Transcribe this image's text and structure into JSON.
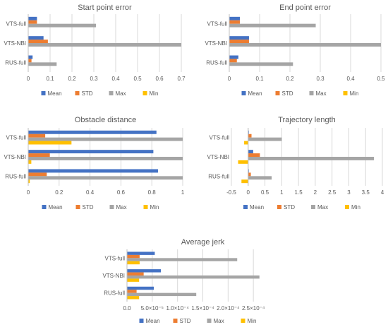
{
  "figure": {
    "series_colors": [
      "#4472C4",
      "#ED7D31",
      "#A5A5A5",
      "#FFC000"
    ]
  },
  "chart_data": [
    {
      "type": "bar",
      "orientation": "horizontal",
      "title": "Start point error",
      "categories": [
        "VTS-full",
        "VTS-NBI",
        "RUS-full"
      ],
      "series": [
        {
          "name": "Mean",
          "values": [
            0.04,
            0.07,
            0.02
          ]
        },
        {
          "name": "STD",
          "values": [
            0.04,
            0.09,
            0.015
          ]
        },
        {
          "name": "Max",
          "values": [
            0.31,
            0.7,
            0.13
          ]
        },
        {
          "name": "Min",
          "values": [
            0.0,
            0.0,
            0.0
          ]
        }
      ],
      "xlim": [
        0,
        0.7
      ],
      "xticks": [
        0,
        0.1,
        0.2,
        0.3,
        0.4,
        0.5,
        0.6,
        0.7
      ],
      "xtick_labels": [
        "0",
        "0.1",
        "0.2",
        "0.3",
        "0.4",
        "0.5",
        "0.6",
        "0.7"
      ],
      "grid": true,
      "legend": "bottom"
    },
    {
      "type": "bar",
      "orientation": "horizontal",
      "title": "End point error",
      "categories": [
        "VTS-full",
        "VTS-NBI",
        "RUS-full"
      ],
      "series": [
        {
          "name": "Mean",
          "values": [
            0.035,
            0.065,
            0.03
          ]
        },
        {
          "name": "STD",
          "values": [
            0.035,
            0.065,
            0.025
          ]
        },
        {
          "name": "Max",
          "values": [
            0.285,
            0.5,
            0.21
          ]
        },
        {
          "name": "Min",
          "values": [
            0.0,
            0.0,
            0.0
          ]
        }
      ],
      "xlim": [
        0,
        0.5
      ],
      "xticks": [
        0,
        0.1,
        0.2,
        0.3,
        0.4,
        0.5
      ],
      "xtick_labels": [
        "0",
        "0.1",
        "0.2",
        "0.3",
        "0.4",
        "0.5"
      ],
      "grid": true,
      "legend": "bottom"
    },
    {
      "type": "bar",
      "orientation": "horizontal",
      "title": "Obstacle distance",
      "categories": [
        "VTS-full",
        "VTS-NBI",
        "RUS-full"
      ],
      "series": [
        {
          "name": "Mean",
          "values": [
            0.83,
            0.81,
            0.84
          ]
        },
        {
          "name": "STD",
          "values": [
            0.11,
            0.14,
            0.12
          ]
        },
        {
          "name": "Max",
          "values": [
            1.0,
            1.0,
            1.0
          ]
        },
        {
          "name": "Min",
          "values": [
            0.28,
            0.02,
            0.01
          ]
        }
      ],
      "xlim": [
        0,
        1
      ],
      "xticks": [
        0,
        0.2,
        0.4,
        0.6,
        0.8,
        1
      ],
      "xtick_labels": [
        "0",
        "0.2",
        "0.4",
        "0.6",
        "0.8",
        "1"
      ],
      "grid": true,
      "legend": "bottom"
    },
    {
      "type": "bar",
      "orientation": "horizontal",
      "title": "Trajectory length",
      "categories": [
        "VTS-full",
        "VTS-NBI",
        "RUS-full"
      ],
      "series": [
        {
          "name": "Mean",
          "values": [
            0.02,
            0.15,
            0.02
          ]
        },
        {
          "name": "STD",
          "values": [
            0.1,
            0.35,
            0.08
          ]
        },
        {
          "name": "Max",
          "values": [
            1.0,
            3.75,
            0.7
          ]
        },
        {
          "name": "Min",
          "values": [
            -0.12,
            -0.3,
            -0.2
          ]
        }
      ],
      "xlim": [
        -0.5,
        4
      ],
      "xticks": [
        -0.5,
        0,
        0.5,
        1,
        1.5,
        2,
        2.5,
        3,
        3.5,
        4
      ],
      "xtick_labels": [
        "-0.5",
        "0",
        "0.5",
        "1",
        "1.5",
        "2",
        "2.5",
        "3",
        "3.5",
        "4"
      ],
      "grid": true,
      "legend": "bottom"
    },
    {
      "type": "bar",
      "orientation": "horizontal",
      "title": "Average jerk",
      "categories": [
        "VTS-full",
        "VTS-NBI",
        "RUS-full"
      ],
      "series": [
        {
          "name": "Mean",
          "values": [
            5.5e-05,
            6.7e-05,
            5.3e-05
          ]
        },
        {
          "name": "STD",
          "values": [
            2.5e-05,
            3.3e-05,
            1.9e-05
          ]
        },
        {
          "name": "Max",
          "values": [
            0.000218,
            0.000262,
            0.000137
          ]
        },
        {
          "name": "Min",
          "values": [
            2.5e-05,
            2.4e-05,
            2.4e-05
          ]
        }
      ],
      "xlim": [
        0,
        0.0003
      ],
      "xticks": [
        0,
        5e-05,
        0.0001,
        0.00015,
        0.0002,
        0.00025
      ],
      "xtick_labels": [
        "0.0",
        "5.0×10⁻⁵",
        "1.0×10⁻⁴",
        "1.5×10⁻⁴",
        "2.0×10⁻⁴",
        "2.5×10⁻⁴"
      ],
      "grid": true,
      "legend": "bottom"
    }
  ]
}
